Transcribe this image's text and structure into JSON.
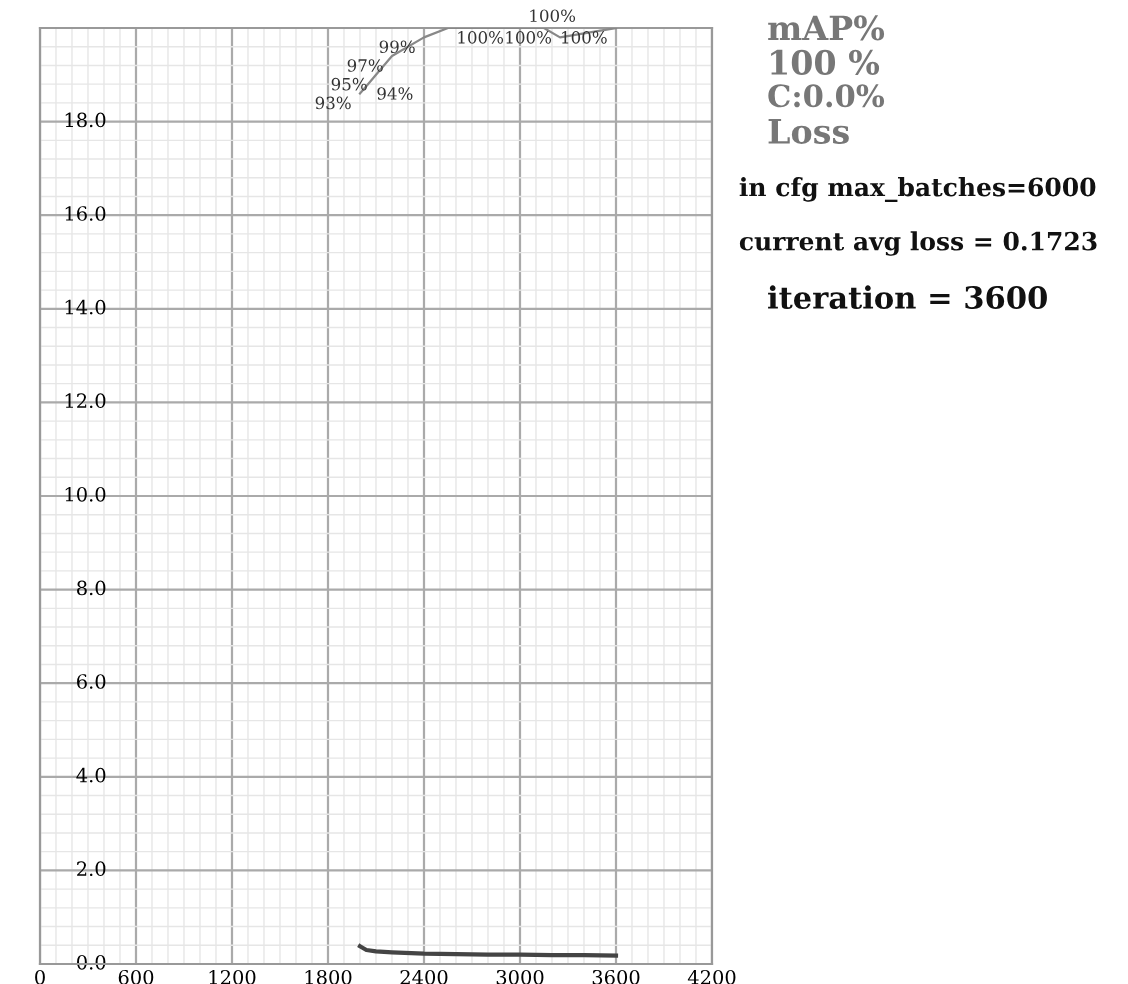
{
  "chart_data": {
    "type": "line",
    "annotations": [
      "mAP%",
      "100 %",
      "C:0.0%",
      "Loss",
      "in cfg max_batches=6000",
      "current avg loss = 0.1723",
      "iteration = 3600"
    ],
    "xlim": [
      0,
      4200
    ],
    "xticks": [
      0,
      600,
      1200,
      1800,
      2400,
      3000,
      3600,
      4200
    ],
    "ylim": [
      0,
      20
    ],
    "yticks": [
      {
        "value": 0,
        "label": "0.0"
      },
      {
        "value": 2,
        "label": "2.0"
      },
      {
        "value": 4,
        "label": "4.0"
      },
      {
        "value": 6,
        "label": "6.0"
      },
      {
        "value": 8,
        "label": "8.0"
      },
      {
        "value": 10,
        "label": "10.0"
      },
      {
        "value": 12,
        "label": "12.0"
      },
      {
        "value": 14,
        "label": "14.0"
      },
      {
        "value": 16,
        "label": "16.0"
      },
      {
        "value": 18,
        "label": "18.0"
      }
    ],
    "y2lim": [
      0,
      100
    ],
    "grid": true,
    "series": [
      {
        "color": "#444444",
        "x": [
          2000,
          2040,
          2100,
          2200,
          2400,
          2600,
          2800,
          3000,
          3200,
          3400,
          3600
        ],
        "values": [
          0.38,
          0.3,
          0.27,
          0.25,
          0.22,
          0.21,
          0.2,
          0.2,
          0.19,
          0.19,
          0.18
        ]
      },
      {
        "color": "#888888",
        "axis": "y2",
        "x": [
          2000,
          2050,
          2100,
          2200,
          2400,
          2550,
          2850,
          3000,
          3150,
          3250,
          3600
        ],
        "values": [
          93,
          94,
          95,
          97,
          99,
          100,
          100,
          100,
          100,
          99,
          100
        ],
        "value_labels": [
          "93%",
          "94%",
          "95%",
          "97%",
          "99%",
          "100%",
          "100%",
          "100%",
          null,
          null,
          "100%"
        ]
      }
    ]
  }
}
